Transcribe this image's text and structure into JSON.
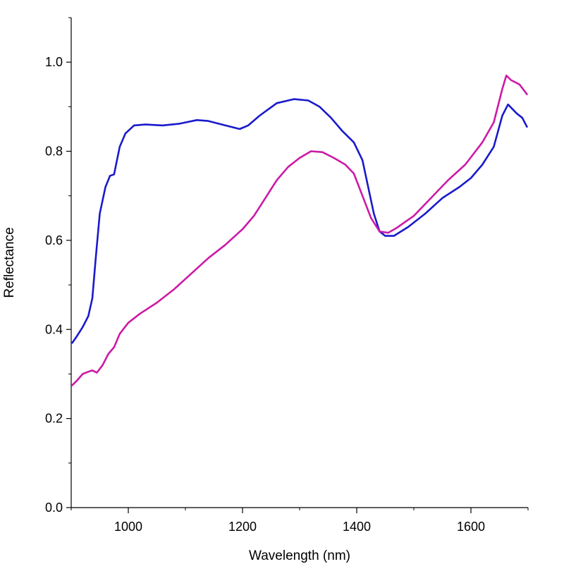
{
  "chart_data": {
    "type": "line",
    "title": "",
    "xlabel": "Wavelength (nm)",
    "ylabel": "Reflectance",
    "xlim": [
      900,
      1700
    ],
    "ylim": [
      0.0,
      1.1
    ],
    "x_ticks": [
      1000,
      1200,
      1400,
      1600
    ],
    "x_tick_labels": [
      "1000",
      "1200",
      "1400",
      "1600"
    ],
    "y_ticks": [
      0.0,
      0.2,
      0.4,
      0.6,
      0.8,
      1.0
    ],
    "y_tick_labels": [
      "0.0",
      "0.2",
      "0.4",
      "0.6",
      "0.8",
      "1.0"
    ],
    "grid": false,
    "legend": "none",
    "series": [
      {
        "color": "#1a1acc",
        "points": [
          [
            902,
            0.37
          ],
          [
            910,
            0.385
          ],
          [
            920,
            0.405
          ],
          [
            930,
            0.43
          ],
          [
            937,
            0.47
          ],
          [
            943,
            0.56
          ],
          [
            950,
            0.66
          ],
          [
            960,
            0.72
          ],
          [
            968,
            0.745
          ],
          [
            975,
            0.748
          ],
          [
            985,
            0.81
          ],
          [
            995,
            0.84
          ],
          [
            1010,
            0.858
          ],
          [
            1030,
            0.86
          ],
          [
            1060,
            0.858
          ],
          [
            1090,
            0.862
          ],
          [
            1120,
            0.87
          ],
          [
            1140,
            0.868
          ],
          [
            1170,
            0.858
          ],
          [
            1195,
            0.85
          ],
          [
            1210,
            0.858
          ],
          [
            1230,
            0.88
          ],
          [
            1260,
            0.908
          ],
          [
            1290,
            0.917
          ],
          [
            1315,
            0.914
          ],
          [
            1335,
            0.9
          ],
          [
            1355,
            0.875
          ],
          [
            1375,
            0.845
          ],
          [
            1395,
            0.82
          ],
          [
            1410,
            0.78
          ],
          [
            1420,
            0.72
          ],
          [
            1430,
            0.66
          ],
          [
            1440,
            0.62
          ],
          [
            1450,
            0.61
          ],
          [
            1465,
            0.61
          ],
          [
            1490,
            0.63
          ],
          [
            1520,
            0.66
          ],
          [
            1550,
            0.695
          ],
          [
            1580,
            0.72
          ],
          [
            1600,
            0.74
          ],
          [
            1620,
            0.77
          ],
          [
            1640,
            0.81
          ],
          [
            1655,
            0.88
          ],
          [
            1665,
            0.905
          ],
          [
            1680,
            0.885
          ],
          [
            1690,
            0.875
          ],
          [
            1698,
            0.855
          ]
        ]
      },
      {
        "color": "#cc1aa6",
        "points": [
          [
            902,
            0.275
          ],
          [
            910,
            0.285
          ],
          [
            920,
            0.3
          ],
          [
            930,
            0.305
          ],
          [
            937,
            0.308
          ],
          [
            945,
            0.303
          ],
          [
            955,
            0.32
          ],
          [
            965,
            0.345
          ],
          [
            975,
            0.36
          ],
          [
            985,
            0.39
          ],
          [
            1000,
            0.415
          ],
          [
            1020,
            0.435
          ],
          [
            1050,
            0.46
          ],
          [
            1080,
            0.49
          ],
          [
            1110,
            0.525
          ],
          [
            1140,
            0.56
          ],
          [
            1170,
            0.59
          ],
          [
            1200,
            0.625
          ],
          [
            1220,
            0.655
          ],
          [
            1240,
            0.695
          ],
          [
            1260,
            0.735
          ],
          [
            1280,
            0.765
          ],
          [
            1300,
            0.785
          ],
          [
            1320,
            0.8
          ],
          [
            1340,
            0.798
          ],
          [
            1360,
            0.785
          ],
          [
            1380,
            0.77
          ],
          [
            1395,
            0.75
          ],
          [
            1410,
            0.7
          ],
          [
            1425,
            0.65
          ],
          [
            1440,
            0.62
          ],
          [
            1455,
            0.617
          ],
          [
            1470,
            0.628
          ],
          [
            1500,
            0.655
          ],
          [
            1530,
            0.695
          ],
          [
            1560,
            0.735
          ],
          [
            1590,
            0.77
          ],
          [
            1620,
            0.82
          ],
          [
            1640,
            0.865
          ],
          [
            1655,
            0.94
          ],
          [
            1662,
            0.97
          ],
          [
            1670,
            0.96
          ],
          [
            1685,
            0.95
          ],
          [
            1698,
            0.928
          ]
        ]
      }
    ]
  }
}
